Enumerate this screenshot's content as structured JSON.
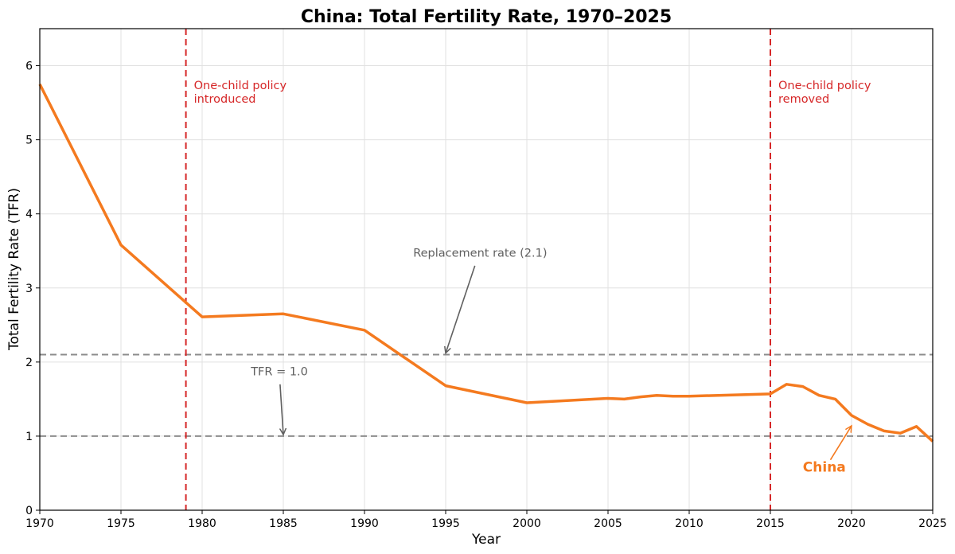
{
  "chart_data": {
    "type": "line",
    "title": "China: Total Fertility Rate, 1970–2025",
    "xlabel": "Year",
    "ylabel": "Total Fertility Rate (TFR)",
    "xlim": [
      1970,
      2025
    ],
    "ylim": [
      0,
      6.5
    ],
    "xticks": [
      1970,
      1975,
      1980,
      1985,
      1990,
      1995,
      2000,
      2005,
      2010,
      2015,
      2020,
      2025
    ],
    "yticks": [
      0,
      1,
      2,
      3,
      4,
      5,
      6
    ],
    "grid": true,
    "series": [
      {
        "name": "China",
        "color": "#f47a1f",
        "x": [
          1970,
          1975,
          1980,
          1985,
          1990,
          1995,
          2000,
          2005,
          2006,
          2007,
          2008,
          2009,
          2010,
          2015,
          2016,
          2017,
          2018,
          2019,
          2020,
          2021,
          2022,
          2023,
          2024,
          2025
        ],
        "y": [
          5.75,
          3.58,
          2.61,
          2.65,
          2.43,
          1.68,
          1.45,
          1.51,
          1.5,
          1.53,
          1.55,
          1.54,
          1.54,
          1.57,
          1.7,
          1.67,
          1.55,
          1.5,
          1.28,
          1.16,
          1.07,
          1.04,
          1.13,
          0.93
        ]
      }
    ],
    "horizontal_lines": [
      {
        "y": 2.1,
        "color": "#8c8c8c",
        "style": "dashed"
      },
      {
        "y": 1.0,
        "color": "#8c8c8c",
        "style": "dashed"
      }
    ],
    "vertical_lines": [
      {
        "x": 1979,
        "color": "#d62728",
        "style": "dashed",
        "label": [
          "One-child policy",
          "introduced"
        ]
      },
      {
        "x": 2015,
        "color": "#d62728",
        "style": "dashed",
        "label": [
          "One-child policy",
          "removed"
        ]
      }
    ],
    "annotations": [
      {
        "text": "Replacement rate (2.1)",
        "text_x": 1993,
        "text_y": 3.42,
        "arrow_from_x": 1996.8,
        "arrow_from_y": 3.3,
        "arrow_to_x": 1995,
        "arrow_to_y": 2.12,
        "color": "#606060"
      },
      {
        "text": "TFR = 1.0",
        "text_x": 1983,
        "text_y": 1.82,
        "arrow_from_x": 1984.8,
        "arrow_from_y": 1.7,
        "arrow_to_x": 1985,
        "arrow_to_y": 1.02,
        "color": "#606060"
      },
      {
        "text": "China",
        "text_x": 2017,
        "text_y": 0.52,
        "arrow_from_x": 2018.7,
        "arrow_from_y": 0.68,
        "arrow_to_x": 2020,
        "arrow_to_y": 1.14,
        "color": "#f47a1f",
        "bold": true
      }
    ]
  }
}
